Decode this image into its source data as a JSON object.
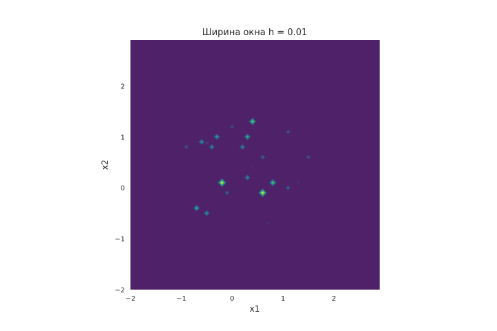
{
  "chart_data": {
    "type": "heatmap",
    "title": "Ширина окна h = 0.01",
    "xlabel": "x1",
    "ylabel": "x2",
    "xlim": [
      -2,
      2.9
    ],
    "ylim": [
      -2,
      2.9
    ],
    "x_ticks": [
      -2,
      -1,
      0,
      1,
      2
    ],
    "y_ticks": [
      -2,
      -1,
      0,
      1,
      2
    ],
    "x_tick_labels": [
      "−2",
      "−1",
      "0",
      "1",
      "2"
    ],
    "y_tick_labels": [
      "−2",
      "−1",
      "0",
      "1",
      "2"
    ],
    "grid": false,
    "colormap": "viridis",
    "background_color": "#4e2169",
    "peaks": [
      {
        "x": -0.2,
        "y": 0.1,
        "intensity": 1.0
      },
      {
        "x": 0.6,
        "y": -0.1,
        "intensity": 1.0
      },
      {
        "x": 0.4,
        "y": 1.3,
        "intensity": 0.8
      },
      {
        "x": 0.8,
        "y": 0.1,
        "intensity": 0.75
      },
      {
        "x": 0.3,
        "y": 1.0,
        "intensity": 0.65
      },
      {
        "x": -0.7,
        "y": -0.4,
        "intensity": 0.65
      },
      {
        "x": -0.3,
        "y": 1.0,
        "intensity": 0.6
      },
      {
        "x": -0.6,
        "y": 0.9,
        "intensity": 0.55
      },
      {
        "x": -0.4,
        "y": 0.8,
        "intensity": 0.5
      },
      {
        "x": 0.2,
        "y": 0.8,
        "intensity": 0.5
      },
      {
        "x": 0.3,
        "y": 0.2,
        "intensity": 0.5
      },
      {
        "x": -0.5,
        "y": -0.5,
        "intensity": 0.55
      },
      {
        "x": 0.6,
        "y": 0.6,
        "intensity": 0.35
      },
      {
        "x": -0.1,
        "y": -0.1,
        "intensity": 0.35
      },
      {
        "x": 1.1,
        "y": 0.0,
        "intensity": 0.35
      },
      {
        "x": 1.1,
        "y": 1.1,
        "intensity": 0.3
      },
      {
        "x": 1.5,
        "y": 0.6,
        "intensity": 0.3
      },
      {
        "x": -0.9,
        "y": 0.8,
        "intensity": 0.3
      },
      {
        "x": 0.0,
        "y": 1.2,
        "intensity": 0.25
      },
      {
        "x": -0.5,
        "y": 0.88,
        "intensity": 0.2
      },
      {
        "x": 0.7,
        "y": -0.7,
        "intensity": 0.12
      },
      {
        "x": 1.3,
        "y": 0.1,
        "intensity": 0.1
      },
      {
        "x": 0.4,
        "y": 0.4,
        "intensity": 0.08
      }
    ]
  }
}
